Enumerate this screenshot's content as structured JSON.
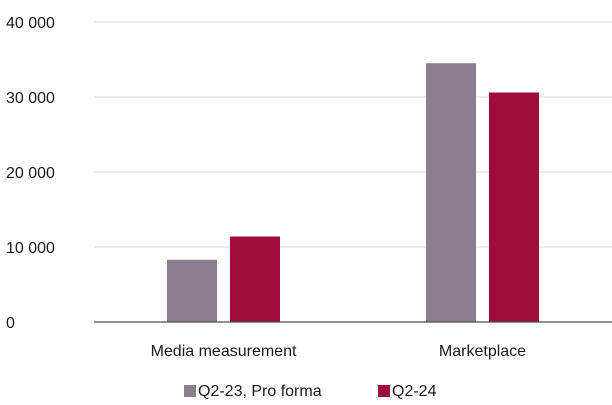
{
  "chart_data": {
    "type": "bar",
    "title": "",
    "xlabel": "",
    "ylabel": "",
    "categories": [
      "Media measurement",
      "Marketplace"
    ],
    "series": [
      {
        "name": "Q2-23, Pro forma",
        "color": "#8b7d8f",
        "values": [
          8300,
          34500
        ]
      },
      {
        "name": "Q2-24",
        "color": "#a10d3b",
        "values": [
          11400,
          30600
        ]
      }
    ],
    "ylim": [
      0,
      40000
    ],
    "yticks": [
      0,
      10000,
      20000,
      30000,
      40000
    ],
    "ytick_labels": [
      "0",
      "10 000",
      "20 000",
      "30 000",
      "40 000"
    ],
    "grid": true,
    "legend_position": "bottom-center"
  }
}
